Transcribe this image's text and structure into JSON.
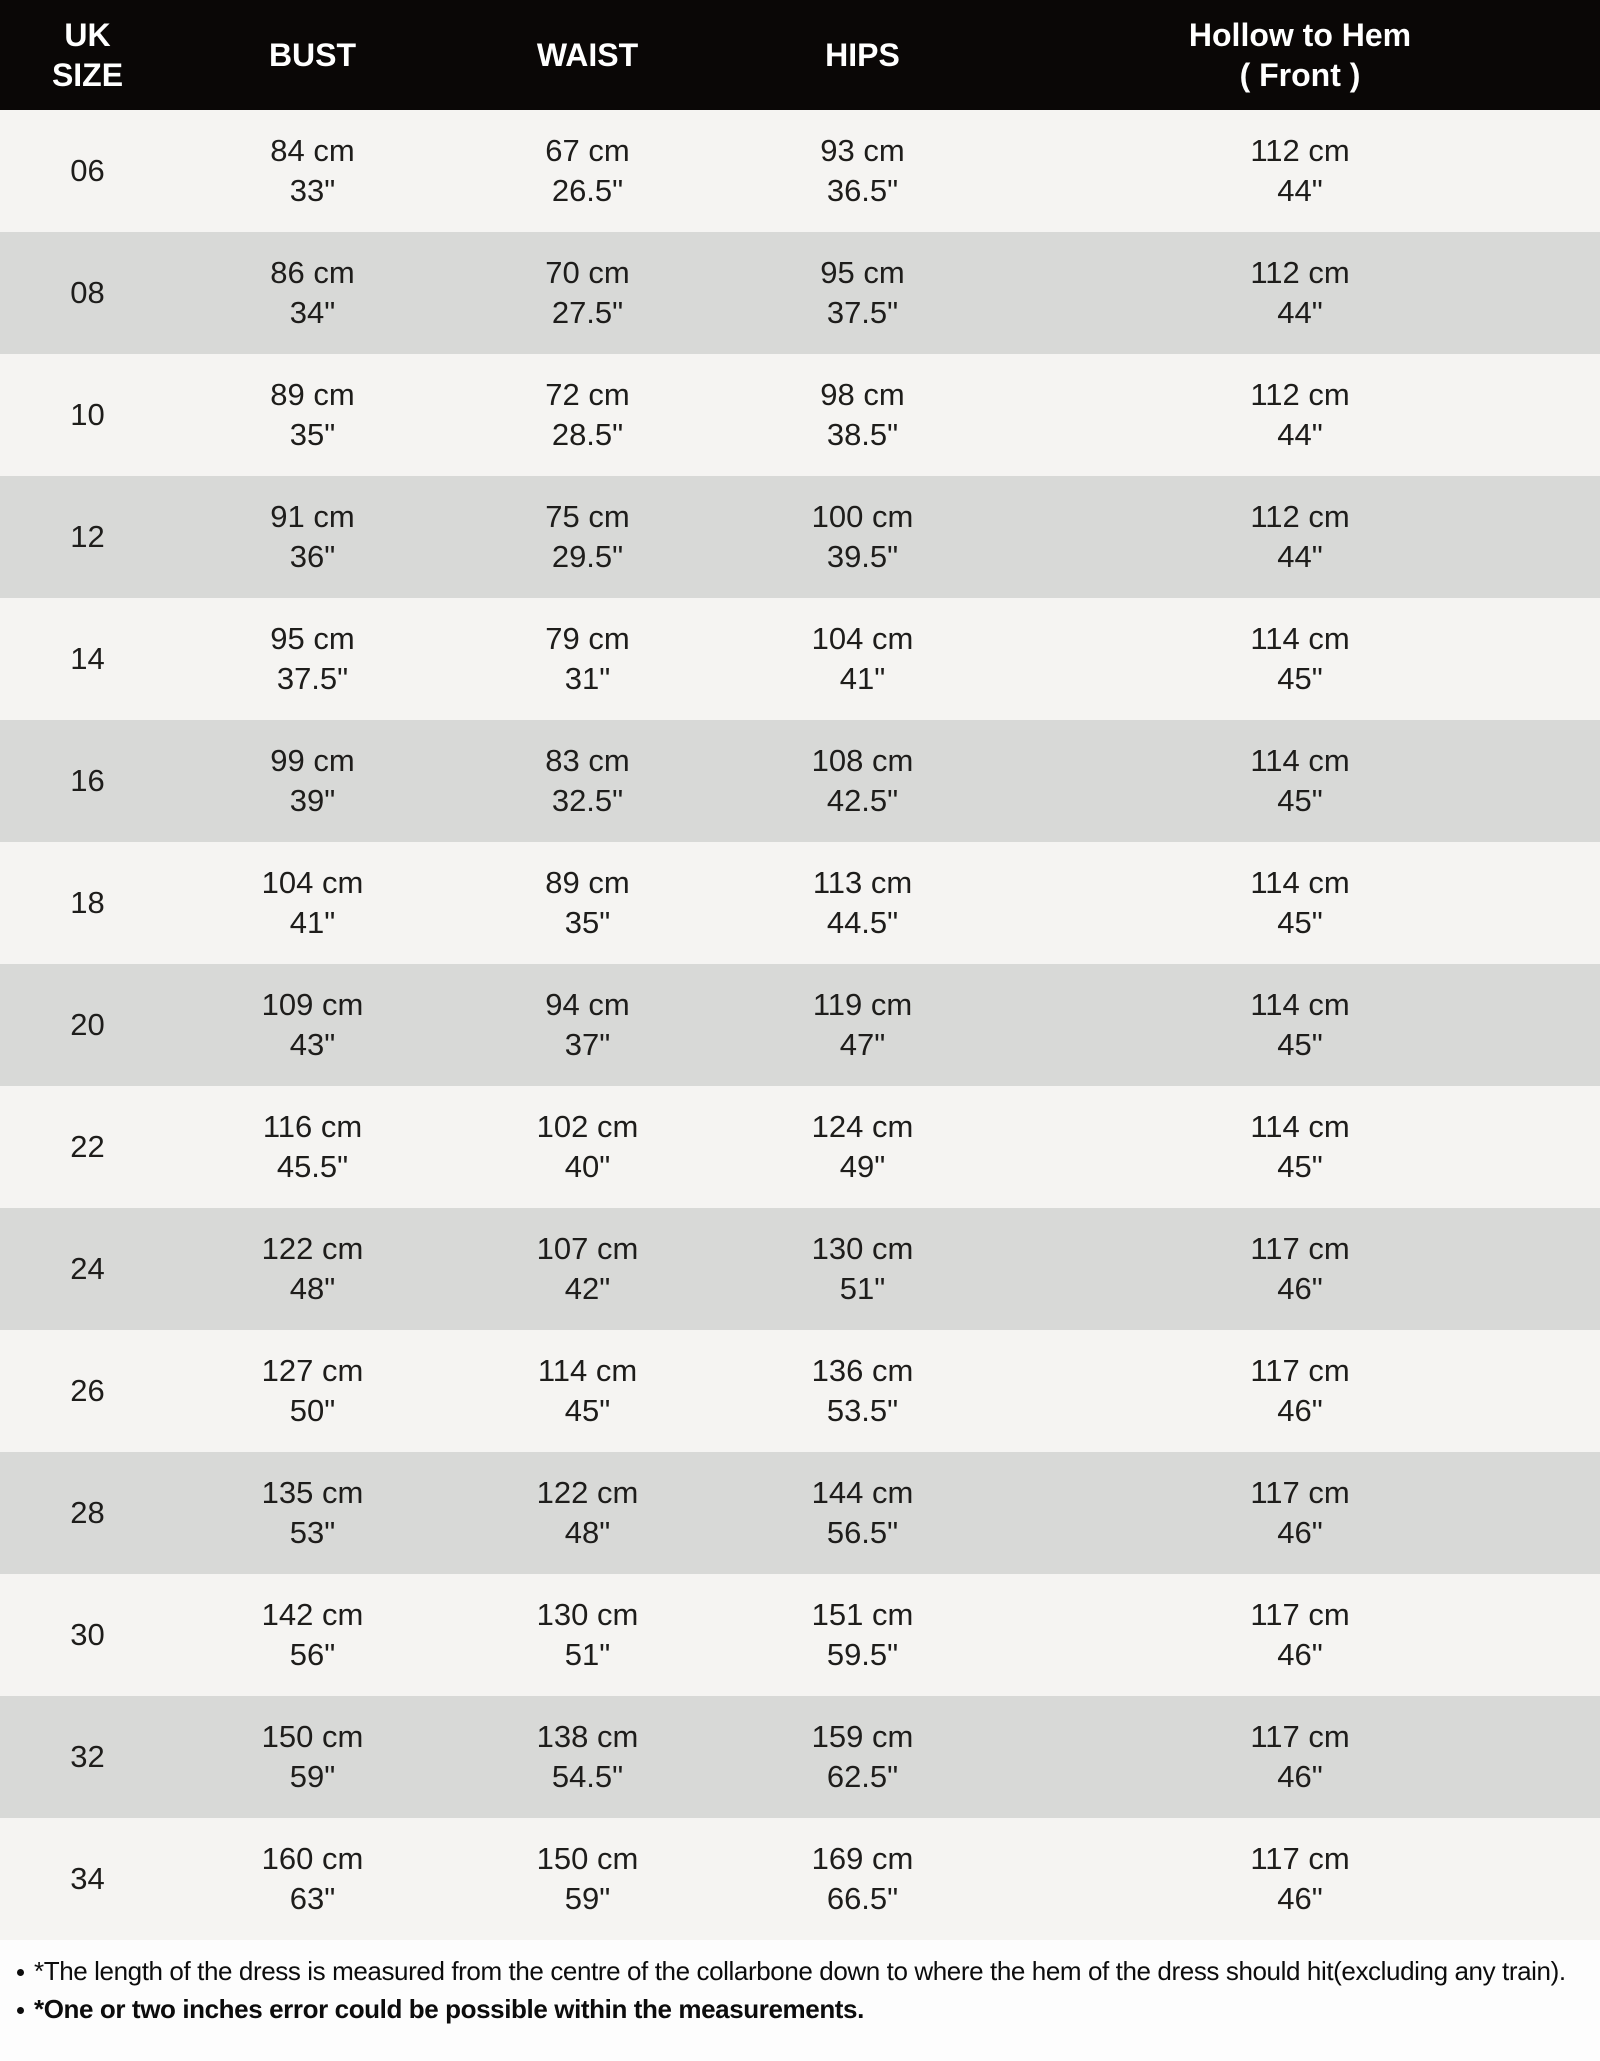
{
  "colors": {
    "header_bg": "#0a0706",
    "header_text": "#ffffff",
    "row_light": "#f5f4f2",
    "row_dark": "#d8d9d7",
    "cell_text": "#1e1d1b",
    "note_text": "#0c0c0c",
    "page_bg": "#fdfdfd"
  },
  "table": {
    "columns": [
      {
        "key": "size",
        "label_lines": [
          "UK",
          "SIZE"
        ]
      },
      {
        "key": "bust",
        "label_lines": [
          "BUST"
        ]
      },
      {
        "key": "waist",
        "label_lines": [
          "WAIST"
        ]
      },
      {
        "key": "hips",
        "label_lines": [
          "HIPS"
        ]
      },
      {
        "key": "hollow",
        "label_lines": [
          "Hollow to Hem",
          "( Front )"
        ]
      }
    ],
    "rows": [
      {
        "size": "06",
        "bust": [
          "84 cm",
          "33\""
        ],
        "waist": [
          "67 cm",
          "26.5\""
        ],
        "hips": [
          "93 cm",
          "36.5\""
        ],
        "hollow": [
          "112 cm",
          "44\""
        ]
      },
      {
        "size": "08",
        "bust": [
          "86 cm",
          "34\""
        ],
        "waist": [
          "70 cm",
          "27.5\""
        ],
        "hips": [
          "95 cm",
          "37.5\""
        ],
        "hollow": [
          "112 cm",
          "44\""
        ]
      },
      {
        "size": "10",
        "bust": [
          "89 cm",
          "35\""
        ],
        "waist": [
          "72 cm",
          "28.5\""
        ],
        "hips": [
          "98 cm",
          "38.5\""
        ],
        "hollow": [
          "112 cm",
          "44\""
        ]
      },
      {
        "size": "12",
        "bust": [
          "91 cm",
          "36\""
        ],
        "waist": [
          "75 cm",
          "29.5\""
        ],
        "hips": [
          "100 cm",
          "39.5\""
        ],
        "hollow": [
          "112 cm",
          "44\""
        ]
      },
      {
        "size": "14",
        "bust": [
          "95 cm",
          "37.5\""
        ],
        "waist": [
          "79 cm",
          "31\""
        ],
        "hips": [
          "104 cm",
          "41\""
        ],
        "hollow": [
          "114 cm",
          "45\""
        ]
      },
      {
        "size": "16",
        "bust": [
          "99 cm",
          "39\""
        ],
        "waist": [
          "83 cm",
          "32.5\""
        ],
        "hips": [
          "108 cm",
          "42.5\""
        ],
        "hollow": [
          "114 cm",
          "45\""
        ]
      },
      {
        "size": "18",
        "bust": [
          "104 cm",
          "41\""
        ],
        "waist": [
          "89 cm",
          "35\""
        ],
        "hips": [
          "113 cm",
          "44.5\""
        ],
        "hollow": [
          "114 cm",
          "45\""
        ]
      },
      {
        "size": "20",
        "bust": [
          "109 cm",
          "43\""
        ],
        "waist": [
          "94 cm",
          "37\""
        ],
        "hips": [
          "119 cm",
          "47\""
        ],
        "hollow": [
          "114 cm",
          "45\""
        ]
      },
      {
        "size": "22",
        "bust": [
          "116 cm",
          "45.5\""
        ],
        "waist": [
          "102 cm",
          "40\""
        ],
        "hips": [
          "124 cm",
          "49\""
        ],
        "hollow": [
          "114 cm",
          "45\""
        ]
      },
      {
        "size": "24",
        "bust": [
          "122 cm",
          "48\""
        ],
        "waist": [
          "107 cm",
          "42\""
        ],
        "hips": [
          "130 cm",
          "51\""
        ],
        "hollow": [
          "117 cm",
          "46\""
        ]
      },
      {
        "size": "26",
        "bust": [
          "127 cm",
          "50\""
        ],
        "waist": [
          "114 cm",
          "45\""
        ],
        "hips": [
          "136 cm",
          "53.5\""
        ],
        "hollow": [
          "117 cm",
          "46\""
        ]
      },
      {
        "size": "28",
        "bust": [
          "135 cm",
          "53\""
        ],
        "waist": [
          "122 cm",
          "48\""
        ],
        "hips": [
          "144 cm",
          "56.5\""
        ],
        "hollow": [
          "117 cm",
          "46\""
        ]
      },
      {
        "size": "30",
        "bust": [
          "142 cm",
          "56\""
        ],
        "waist": [
          "130 cm",
          "51\""
        ],
        "hips": [
          "151 cm",
          "59.5\""
        ],
        "hollow": [
          "117 cm",
          "46\""
        ]
      },
      {
        "size": "32",
        "bust": [
          "150 cm",
          "59\""
        ],
        "waist": [
          "138 cm",
          "54.5\""
        ],
        "hips": [
          "159 cm",
          "62.5\""
        ],
        "hollow": [
          "117 cm",
          "46\""
        ]
      },
      {
        "size": "34",
        "bust": [
          "160 cm",
          "63\""
        ],
        "waist": [
          "150 cm",
          "59\""
        ],
        "hips": [
          "169 cm",
          "66.5\""
        ],
        "hollow": [
          "117 cm",
          "46\""
        ]
      }
    ]
  },
  "notes": [
    {
      "text": "*The length of the dress is measured from the centre of the collarbone down to where the hem of the dress should hit(excluding any train)."
    },
    {
      "text": "*One or two inches error could be possible within the measurements."
    }
  ]
}
